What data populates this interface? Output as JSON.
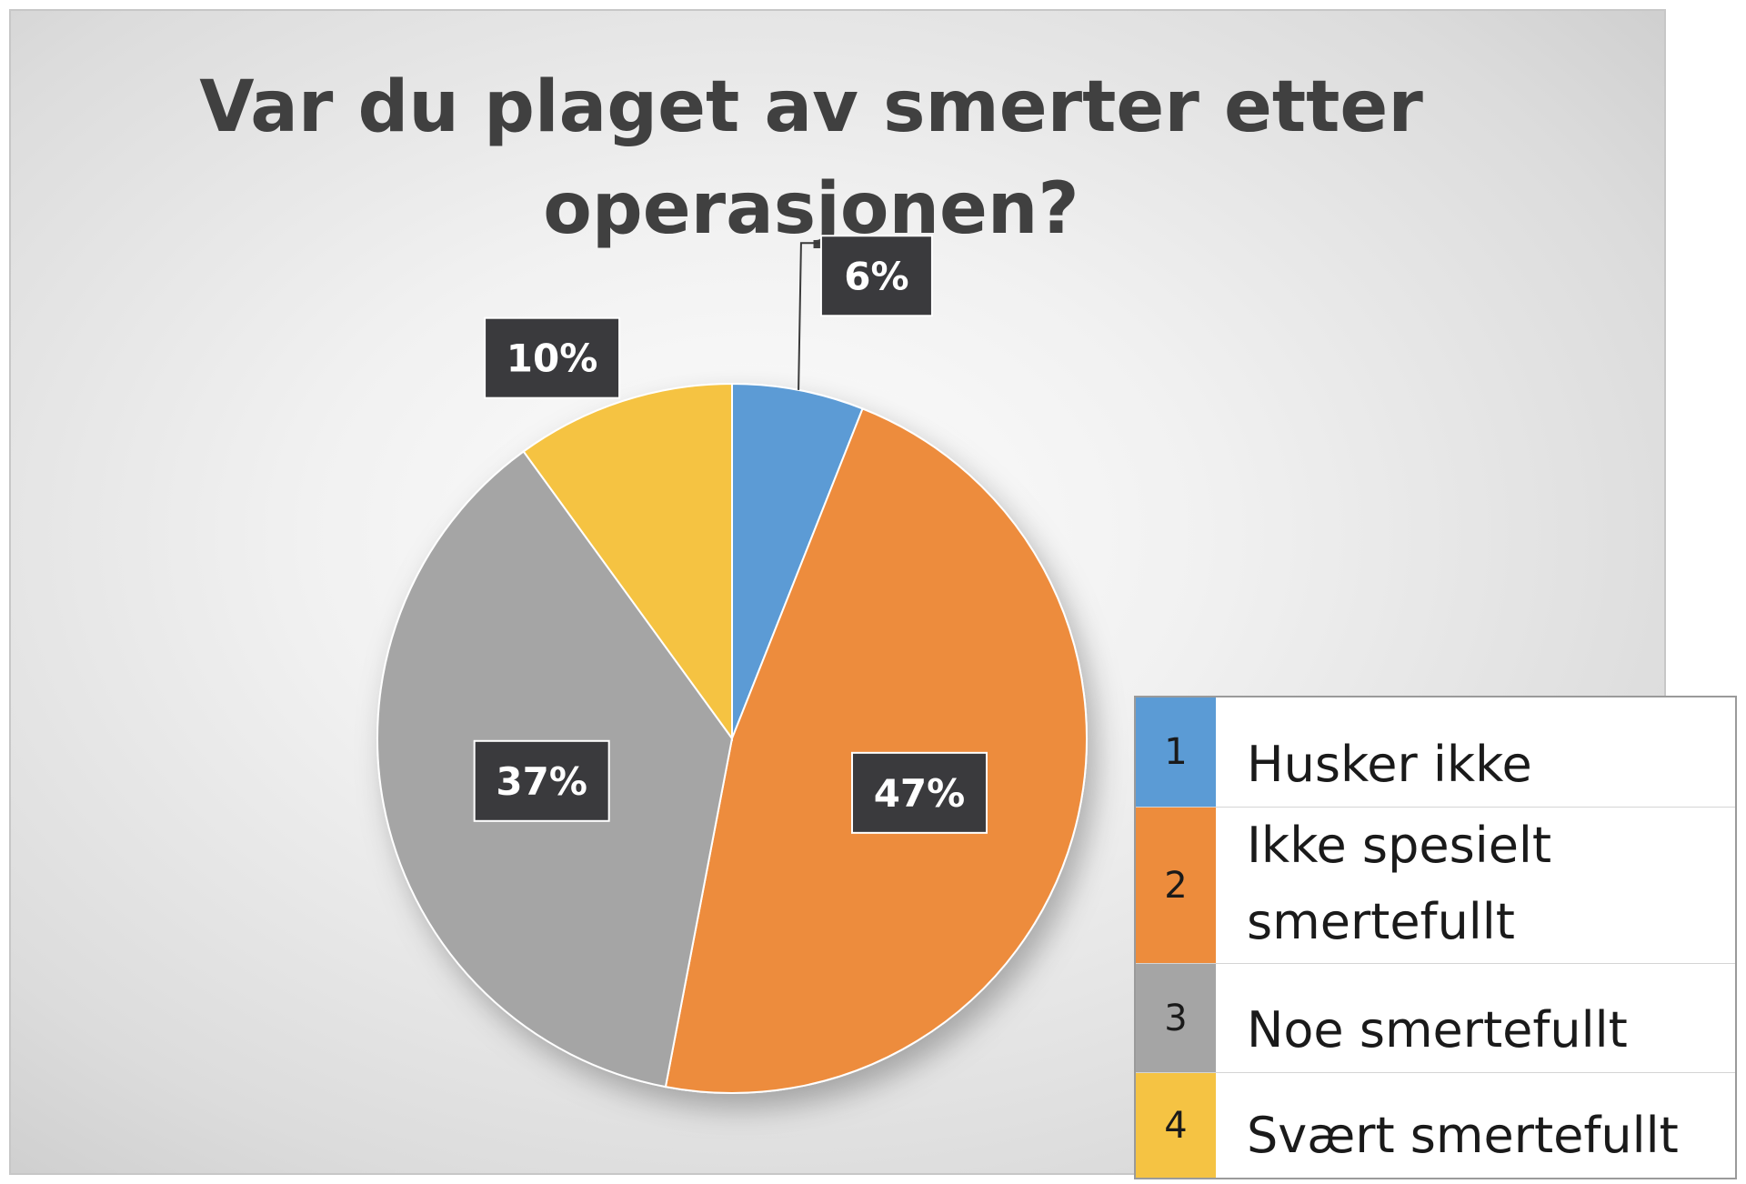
{
  "chart_data": {
    "type": "pie",
    "title": "Var du plaget av smerter etter operasjonen?",
    "categories": [
      "1",
      "2",
      "3",
      "4"
    ],
    "labels": [
      "Husker ikke",
      "Ikke spesielt smertefullt",
      "Noe smertefullt",
      "Svært smertefullt"
    ],
    "values": [
      6,
      47,
      37,
      10
    ],
    "value_labels": [
      "6%",
      "47%",
      "37%",
      "10%"
    ],
    "colors": [
      "#5b9bd5",
      "#ed8c3c",
      "#a5a5a5",
      "#f5c343"
    ],
    "start_angle": "12 o'clock",
    "direction": "clockwise",
    "legend_position": "bottom-right"
  },
  "legend": {
    "items": [
      {
        "key": "1",
        "label": "Husker ikke",
        "color": "#5b9bd5"
      },
      {
        "key": "2",
        "label": "Ikke spesielt smertefullt",
        "color": "#ed8c3c"
      },
      {
        "key": "3",
        "label": "Noe smertefullt",
        "color": "#a5a5a5"
      },
      {
        "key": "4",
        "label": "Svært smertefullt",
        "color": "#f5c343"
      }
    ]
  }
}
